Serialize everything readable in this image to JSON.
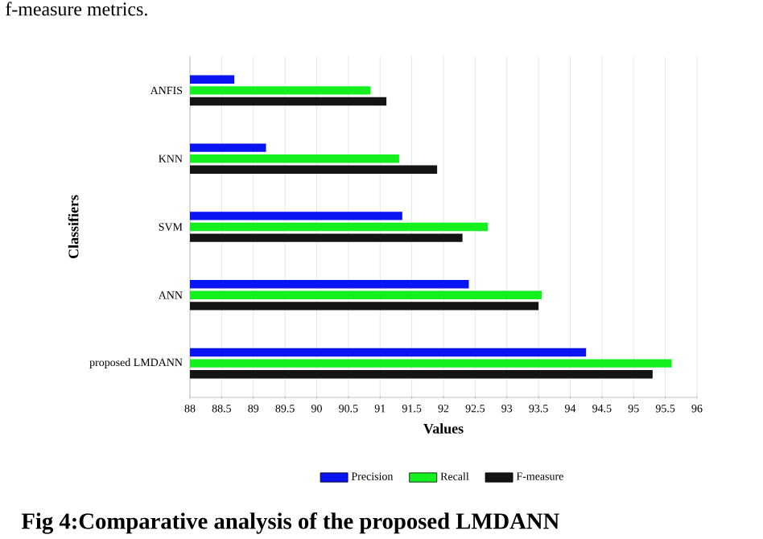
{
  "chart_data": {
    "type": "bar",
    "orientation": "horizontal",
    "xlabel": "Values",
    "ylabel": "Classifiers",
    "categories": [
      "ANFIS",
      "KNN",
      "SVM",
      "ANN",
      "proposed LMDANN"
    ],
    "series": [
      {
        "name": "Precision",
        "color": "#0a14f0",
        "values": [
          88.7,
          89.2,
          91.35,
          92.4,
          94.25
        ]
      },
      {
        "name": "Recall",
        "color": "#14f01e",
        "values": [
          90.85,
          91.3,
          92.7,
          93.55,
          95.6
        ]
      },
      {
        "name": "F-measure",
        "color": "#141414",
        "values": [
          91.1,
          91.9,
          92.3,
          93.5,
          95.3
        ]
      }
    ],
    "xlim": [
      88,
      96
    ],
    "xticks": [
      88,
      88.5,
      89,
      89.5,
      90,
      90.5,
      91,
      91.5,
      92,
      92.5,
      93,
      93.5,
      94,
      94.5,
      95,
      95.5,
      96
    ],
    "grid": "x",
    "legend": "bottom",
    "annotations": [
      "f-measure metrics.",
      "Fig 4:Comparative analysis of the proposed LMDANN"
    ]
  }
}
